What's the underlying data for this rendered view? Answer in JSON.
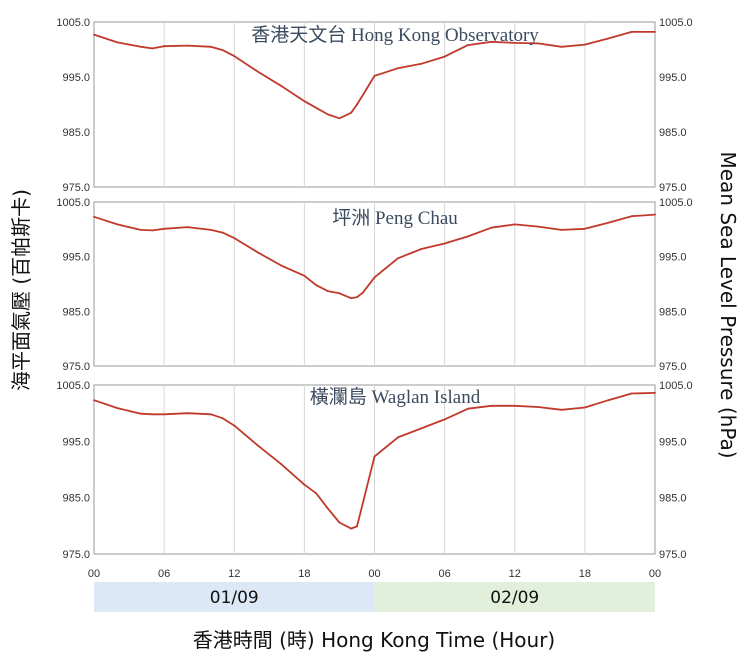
{
  "chart_data": {
    "type": "line",
    "ylabel_left": "海平面氣壓 (百帕斯卡)",
    "ylabel_right": "Mean Sea Level Pressure (hPa)",
    "xlabel": "香港時間 (時)  Hong Kong Time (Hour)",
    "x_ticks": [
      "00",
      "06",
      "12",
      "18",
      "00",
      "06",
      "12",
      "18",
      "00"
    ],
    "x_range_hours": [
      0,
      48
    ],
    "date_bands": [
      {
        "label": "01/09",
        "from_hour": 0,
        "to_hour": 24,
        "color": "#dce8f5"
      },
      {
        "label": "02/09",
        "from_hour": 24,
        "to_hour": 48,
        "color": "#e2efdb"
      }
    ],
    "line_color": "#c0392b",
    "grid": "vertical",
    "panels": [
      {
        "title": "香港天文台 Hong Kong Observatory",
        "y_ticks": [
          "1005.0",
          "995.0",
          "985.0",
          "975.0"
        ],
        "ylim": [
          975,
          1005
        ],
        "x": [
          0,
          2,
          4,
          5,
          6,
          8,
          10,
          11,
          12,
          14,
          16,
          18,
          19,
          20,
          21,
          22,
          22.5,
          23,
          24,
          26,
          28,
          30,
          32,
          34,
          36,
          38,
          40,
          42,
          44,
          46,
          48
        ],
        "values": [
          1002.7,
          1001.3,
          1000.5,
          1000.2,
          1000.6,
          1000.7,
          1000.5,
          999.9,
          998.8,
          996.0,
          993.4,
          990.6,
          989.4,
          988.2,
          987.5,
          988.5,
          990.0,
          991.7,
          995.2,
          996.6,
          997.4,
          998.7,
          1000.8,
          1001.4,
          1001.2,
          1001.1,
          1000.5,
          1000.9,
          1002.0,
          1003.2,
          1003.2
        ]
      },
      {
        "title": "坪洲  Peng Chau",
        "y_ticks": [
          "1005.0",
          "995.0",
          "985.0",
          "975.0"
        ],
        "ylim": [
          975,
          1005
        ],
        "x": [
          0,
          2,
          4,
          5,
          6,
          8,
          10,
          11,
          12,
          14,
          16,
          18,
          19,
          20,
          21,
          22,
          22.5,
          23,
          24,
          26,
          28,
          30,
          32,
          34,
          36,
          38,
          40,
          42,
          44,
          46,
          48
        ],
        "values": [
          1002.3,
          1000.9,
          999.9,
          999.8,
          1000.1,
          1000.4,
          999.9,
          999.4,
          998.4,
          995.8,
          993.4,
          991.5,
          989.8,
          988.7,
          988.3,
          987.4,
          987.6,
          988.4,
          991.2,
          994.7,
          996.4,
          997.4,
          998.7,
          1000.3,
          1000.9,
          1000.5,
          999.9,
          1000.1,
          1001.2,
          1002.4,
          1002.7
        ]
      },
      {
        "title": "橫瀾島 Waglan Island",
        "y_ticks": [
          "1005.0",
          "995.0",
          "985.0",
          "975.0"
        ],
        "ylim": [
          975,
          1005
        ],
        "x": [
          0,
          2,
          4,
          5,
          6,
          8,
          10,
          11,
          12,
          14,
          16,
          18,
          19,
          20,
          21,
          22,
          22.5,
          23,
          24,
          26,
          28,
          30,
          32,
          34,
          36,
          38,
          40,
          42,
          44,
          46,
          48
        ],
        "values": [
          1002.3,
          1000.9,
          999.9,
          999.8,
          999.8,
          1000.0,
          999.8,
          999.1,
          997.8,
          994.3,
          991.0,
          987.3,
          985.8,
          983.1,
          980.6,
          979.5,
          979.9,
          984.0,
          992.3,
          995.7,
          997.3,
          998.9,
          1000.8,
          1001.3,
          1001.3,
          1001.1,
          1000.6,
          1001.0,
          1002.3,
          1003.5,
          1003.6
        ]
      }
    ]
  }
}
